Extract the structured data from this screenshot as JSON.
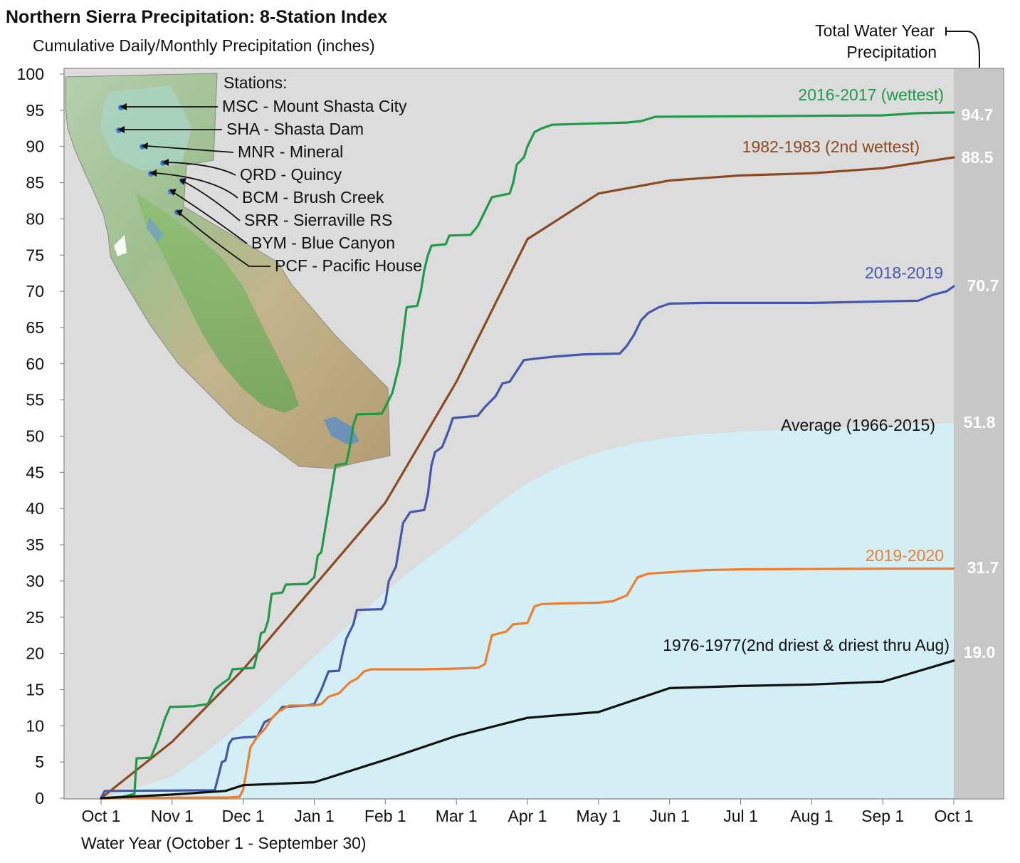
{
  "chart_data": {
    "type": "line",
    "title": "Northern Sierra Precipitation: 8-Station Index",
    "subtitle": "Cumulative Daily/Monthly Precipitation (inches)",
    "xlabel": "Water Year (October 1 - September 30)",
    "ylabel": "",
    "ylim": [
      0,
      100
    ],
    "yticks": [
      0,
      5,
      10,
      15,
      20,
      25,
      30,
      35,
      40,
      45,
      50,
      55,
      60,
      65,
      70,
      75,
      80,
      85,
      90,
      95,
      100
    ],
    "x_unit": "months since Oct 1",
    "xlim": [
      0,
      12
    ],
    "xticks": [
      {
        "x": 0,
        "label": "Oct 1"
      },
      {
        "x": 1,
        "label": "Nov 1"
      },
      {
        "x": 2,
        "label": "Dec 1"
      },
      {
        "x": 3,
        "label": "Jan 1"
      },
      {
        "x": 4,
        "label": "Feb 1"
      },
      {
        "x": 5,
        "label": "Mar 1"
      },
      {
        "x": 6,
        "label": "Apr 1"
      },
      {
        "x": 7,
        "label": "May 1"
      },
      {
        "x": 8,
        "label": "Jun 1"
      },
      {
        "x": 9,
        "label": "Jul 1"
      },
      {
        "x": 10,
        "label": "Aug 1"
      },
      {
        "x": 11,
        "label": "Sep 1"
      },
      {
        "x": 12,
        "label": "Oct 1"
      }
    ],
    "grid": false,
    "total_header": [
      "Total Water Year",
      "Precipitation"
    ],
    "stations_header": "Stations:",
    "stations": [
      "MSC - Mount Shasta City",
      "SHA - Shasta Dam",
      "MNR - Mineral",
      "QRD - Quincy",
      "BCM - Brush Creek",
      "SRR - Sierraville RS",
      "BYM - Blue Canyon",
      "PCF - Pacific House"
    ],
    "average": {
      "name": "Average (1966-2015)",
      "total": "51.8",
      "color": "#d3eef4",
      "points": [
        [
          0,
          0
        ],
        [
          0.5,
          1.4
        ],
        [
          1,
          3
        ],
        [
          1.5,
          6.5
        ],
        [
          2,
          10.5
        ],
        [
          2.5,
          15
        ],
        [
          3,
          19.5
        ],
        [
          3.5,
          24
        ],
        [
          4,
          28.5
        ],
        [
          4.5,
          32.5
        ],
        [
          5,
          36
        ],
        [
          5.5,
          40
        ],
        [
          6,
          43.5
        ],
        [
          6.5,
          46
        ],
        [
          7,
          47.8
        ],
        [
          7.5,
          49
        ],
        [
          8,
          49.8
        ],
        [
          8.5,
          50.3
        ],
        [
          9,
          50.6
        ],
        [
          10,
          51
        ],
        [
          11,
          51.4
        ],
        [
          12,
          51.8
        ]
      ]
    },
    "series": [
      {
        "name": "2016-2017 (wettest)",
        "total": "94.7",
        "color": "#1f9a48",
        "points": [
          [
            0,
            0
          ],
          [
            0.3,
            0.2
          ],
          [
            0.47,
            0.6
          ],
          [
            0.5,
            5.5
          ],
          [
            0.7,
            5.6
          ],
          [
            0.8,
            8
          ],
          [
            0.9,
            11
          ],
          [
            0.97,
            12.6
          ],
          [
            1.3,
            12.7
          ],
          [
            1.5,
            13
          ],
          [
            1.6,
            15
          ],
          [
            1.7,
            15.8
          ],
          [
            1.8,
            16.5
          ],
          [
            1.85,
            17.8
          ],
          [
            2.15,
            18
          ],
          [
            2.2,
            20
          ],
          [
            2.25,
            22.8
          ],
          [
            2.3,
            23
          ],
          [
            2.35,
            24.5
          ],
          [
            2.4,
            28.2
          ],
          [
            2.55,
            28.4
          ],
          [
            2.6,
            29.5
          ],
          [
            2.9,
            29.6
          ],
          [
            3.0,
            30.5
          ],
          [
            3.05,
            33.5
          ],
          [
            3.1,
            34
          ],
          [
            3.15,
            37
          ],
          [
            3.2,
            40
          ],
          [
            3.25,
            43
          ],
          [
            3.3,
            46
          ],
          [
            3.45,
            46.2
          ],
          [
            3.5,
            48.5
          ],
          [
            3.55,
            51.5
          ],
          [
            3.6,
            53
          ],
          [
            3.95,
            53.1
          ],
          [
            4.0,
            54
          ],
          [
            4.1,
            56
          ],
          [
            4.2,
            60
          ],
          [
            4.25,
            64
          ],
          [
            4.3,
            67.8
          ],
          [
            4.45,
            68
          ],
          [
            4.5,
            70
          ],
          [
            4.55,
            73
          ],
          [
            4.6,
            75
          ],
          [
            4.65,
            76.3
          ],
          [
            4.85,
            76.5
          ],
          [
            4.9,
            77.7
          ],
          [
            5.2,
            77.8
          ],
          [
            5.3,
            79
          ],
          [
            5.4,
            81
          ],
          [
            5.5,
            83
          ],
          [
            5.6,
            83.2
          ],
          [
            5.75,
            83.5
          ],
          [
            5.8,
            85
          ],
          [
            5.85,
            87.5
          ],
          [
            5.95,
            88.5
          ],
          [
            6.0,
            90
          ],
          [
            6.1,
            92
          ],
          [
            6.2,
            92.5
          ],
          [
            6.35,
            93
          ],
          [
            7.0,
            93.2
          ],
          [
            7.4,
            93.3
          ],
          [
            7.6,
            93.5
          ],
          [
            7.8,
            94.1
          ],
          [
            9.5,
            94.2
          ],
          [
            11.0,
            94.3
          ],
          [
            11.5,
            94.6
          ],
          [
            12,
            94.7
          ]
        ]
      },
      {
        "name": "1982-1983 (2nd wettest)",
        "total": "88.5",
        "color": "#8b4a22",
        "points": [
          [
            0,
            0
          ],
          [
            1,
            7.8
          ],
          [
            2,
            17.8
          ],
          [
            3,
            29.3
          ],
          [
            4,
            40.8
          ],
          [
            5,
            57.5
          ],
          [
            6,
            77.2
          ],
          [
            7,
            83.5
          ],
          [
            8,
            85.3
          ],
          [
            9,
            86
          ],
          [
            10,
            86.3
          ],
          [
            11,
            87
          ],
          [
            12,
            88.5
          ]
        ]
      },
      {
        "name": "2018-2019",
        "total": "70.7",
        "color": "#4457a8",
        "points": [
          [
            0,
            0
          ],
          [
            0.05,
            1
          ],
          [
            1.6,
            1.1
          ],
          [
            1.65,
            3
          ],
          [
            1.7,
            5
          ],
          [
            1.75,
            5.2
          ],
          [
            1.8,
            7.5
          ],
          [
            1.85,
            8.2
          ],
          [
            2.0,
            8.4
          ],
          [
            2.2,
            8.5
          ],
          [
            2.3,
            10.5
          ],
          [
            2.4,
            11
          ],
          [
            2.5,
            12
          ],
          [
            2.55,
            12.6
          ],
          [
            2.9,
            12.8
          ],
          [
            3.0,
            13
          ],
          [
            3.1,
            15
          ],
          [
            3.2,
            17.5
          ],
          [
            3.35,
            17.6
          ],
          [
            3.4,
            20
          ],
          [
            3.45,
            22
          ],
          [
            3.55,
            24
          ],
          [
            3.6,
            26
          ],
          [
            3.95,
            26.1
          ],
          [
            4.0,
            27
          ],
          [
            4.05,
            30
          ],
          [
            4.15,
            32
          ],
          [
            4.2,
            35
          ],
          [
            4.25,
            38
          ],
          [
            4.35,
            39.5
          ],
          [
            4.55,
            39.8
          ],
          [
            4.6,
            42
          ],
          [
            4.65,
            46
          ],
          [
            4.7,
            47.8
          ],
          [
            4.8,
            48.5
          ],
          [
            4.9,
            51
          ],
          [
            4.95,
            52.5
          ],
          [
            5.3,
            52.8
          ],
          [
            5.4,
            54
          ],
          [
            5.55,
            55.5
          ],
          [
            5.65,
            57.3
          ],
          [
            5.75,
            57.5
          ],
          [
            5.85,
            59
          ],
          [
            5.95,
            60.5
          ],
          [
            6.2,
            60.8
          ],
          [
            6.4,
            61
          ],
          [
            6.8,
            61.3
          ],
          [
            7.3,
            61.4
          ],
          [
            7.4,
            62.5
          ],
          [
            7.5,
            64
          ],
          [
            7.6,
            66
          ],
          [
            7.7,
            67
          ],
          [
            7.85,
            67.8
          ],
          [
            8.0,
            68.3
          ],
          [
            8.5,
            68.4
          ],
          [
            10.0,
            68.4
          ],
          [
            10.5,
            68.5
          ],
          [
            11.5,
            68.7
          ],
          [
            11.7,
            69.5
          ],
          [
            11.9,
            70
          ],
          [
            12,
            70.7
          ]
        ]
      },
      {
        "name": "2019-2020",
        "total": "31.7",
        "color": "#ee7e2e",
        "points": [
          [
            0,
            0
          ],
          [
            1.8,
            0.1
          ],
          [
            1.95,
            0.2
          ],
          [
            2.0,
            1.2
          ],
          [
            2.05,
            4
          ],
          [
            2.1,
            7
          ],
          [
            2.2,
            8.5
          ],
          [
            2.3,
            9.5
          ],
          [
            2.4,
            11
          ],
          [
            2.5,
            12
          ],
          [
            2.65,
            12.8
          ],
          [
            3.0,
            12.8
          ],
          [
            3.1,
            13
          ],
          [
            3.2,
            14
          ],
          [
            3.35,
            14.5
          ],
          [
            3.5,
            16
          ],
          [
            3.6,
            16.5
          ],
          [
            3.7,
            17.5
          ],
          [
            3.8,
            17.8
          ],
          [
            4.5,
            17.8
          ],
          [
            5.0,
            17.9
          ],
          [
            5.3,
            18
          ],
          [
            5.4,
            18.5
          ],
          [
            5.5,
            22.5
          ],
          [
            5.7,
            23
          ],
          [
            5.8,
            24
          ],
          [
            6.0,
            24.2
          ],
          [
            6.1,
            26.5
          ],
          [
            6.2,
            26.8
          ],
          [
            6.5,
            26.9
          ],
          [
            7.0,
            27
          ],
          [
            7.2,
            27.2
          ],
          [
            7.4,
            28
          ],
          [
            7.55,
            30.5
          ],
          [
            7.7,
            31
          ],
          [
            8.0,
            31.2
          ],
          [
            8.5,
            31.5
          ],
          [
            9.0,
            31.6
          ],
          [
            11.0,
            31.7
          ],
          [
            12,
            31.7
          ]
        ]
      },
      {
        "name": "1976-1977(2nd driest & driest thru Aug)",
        "total": "19.0",
        "color": "#111111",
        "points": [
          [
            0,
            0
          ],
          [
            1,
            0.5
          ],
          [
            1.75,
            1
          ],
          [
            2,
            1.8
          ],
          [
            3,
            2.2
          ],
          [
            4,
            5.3
          ],
          [
            5,
            8.6
          ],
          [
            6,
            11.1
          ],
          [
            7,
            11.9
          ],
          [
            8,
            15.2
          ],
          [
            9,
            15.5
          ],
          [
            10,
            15.7
          ],
          [
            11,
            16.1
          ],
          [
            12,
            19
          ]
        ]
      }
    ]
  }
}
